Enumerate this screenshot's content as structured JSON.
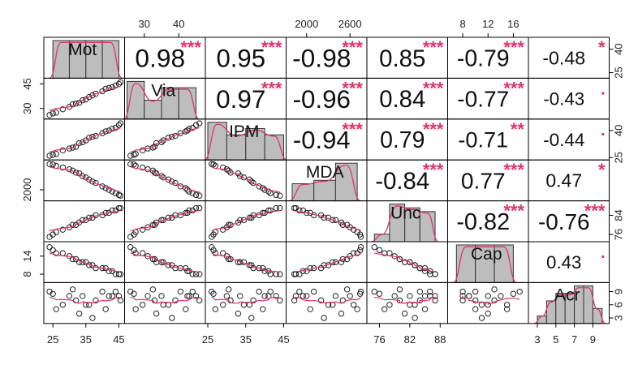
{
  "chart_data": {
    "type": "scatter-matrix",
    "variables": [
      "Mot",
      "Via",
      "IPM",
      "MDA",
      "Unc",
      "Cap",
      "Acr"
    ],
    "ranges": [
      [
        23,
        46
      ],
      [
        25,
        47
      ],
      [
        25,
        45
      ],
      [
        1750,
        2800
      ],
      [
        74,
        89
      ],
      [
        6,
        18
      ],
      [
        2.3,
        10.5
      ]
    ],
    "correlations": [
      {
        "row": 0,
        "col": 1,
        "text": "0.98",
        "stars": "***"
      },
      {
        "row": 0,
        "col": 2,
        "text": "0.95",
        "stars": "***"
      },
      {
        "row": 0,
        "col": 3,
        "text": "-0.98",
        "stars": "***"
      },
      {
        "row": 0,
        "col": 4,
        "text": "0.85",
        "stars": "***"
      },
      {
        "row": 0,
        "col": 5,
        "text": "-0.79",
        "stars": "***"
      },
      {
        "row": 0,
        "col": 6,
        "text": "-0.48",
        "stars": "*"
      },
      {
        "row": 1,
        "col": 2,
        "text": "0.97",
        "stars": "***"
      },
      {
        "row": 1,
        "col": 3,
        "text": "-0.96",
        "stars": "***"
      },
      {
        "row": 1,
        "col": 4,
        "text": "0.84",
        "stars": "***"
      },
      {
        "row": 1,
        "col": 5,
        "text": "-0.77",
        "stars": "***"
      },
      {
        "row": 1,
        "col": 6,
        "text": "-0.43",
        "stars": "."
      },
      {
        "row": 2,
        "col": 3,
        "text": "-0.94",
        "stars": "***"
      },
      {
        "row": 2,
        "col": 4,
        "text": "0.79",
        "stars": "***"
      },
      {
        "row": 2,
        "col": 5,
        "text": "-0.71",
        "stars": "**"
      },
      {
        "row": 2,
        "col": 6,
        "text": "-0.44",
        "stars": "."
      },
      {
        "row": 3,
        "col": 4,
        "text": "-0.84",
        "stars": "***"
      },
      {
        "row": 3,
        "col": 5,
        "text": "0.77",
        "stars": "***"
      },
      {
        "row": 3,
        "col": 6,
        "text": "0.47",
        "stars": "*"
      },
      {
        "row": 4,
        "col": 5,
        "text": "-0.82",
        "stars": "***"
      },
      {
        "row": 4,
        "col": 6,
        "text": "-0.76",
        "stars": "***"
      },
      {
        "row": 5,
        "col": 6,
        "text": "0.43",
        "stars": "."
      }
    ],
    "histograms": [
      {
        "var": "Mot",
        "bins": [
          25,
          30,
          35,
          40,
          45
        ],
        "counts": [
          5,
          5,
          5,
          5
        ]
      },
      {
        "var": "Via",
        "bins": [
          25,
          30,
          35,
          40,
          45
        ],
        "counts": [
          6,
          3,
          5,
          5
        ]
      },
      {
        "var": "IPM",
        "bins": [
          25,
          30,
          35,
          40,
          45
        ],
        "counts": [
          6,
          4,
          5,
          4
        ]
      },
      {
        "var": "MDA",
        "bins": [
          1800,
          2100,
          2400,
          2700
        ],
        "counts": [
          5,
          6,
          11
        ]
      },
      {
        "var": "Unc",
        "bins": [
          75,
          78,
          81,
          84,
          87
        ],
        "counts": [
          2,
          10,
          9,
          8
        ]
      },
      {
        "var": "Cap",
        "bins": [
          7,
          10,
          13,
          16
        ],
        "counts": [
          7,
          7,
          7
        ]
      },
      {
        "var": "Acr",
        "bins": [
          3,
          4,
          5,
          6,
          7,
          8,
          9,
          10
        ],
        "counts": [
          1,
          3,
          4,
          4,
          5,
          5,
          2
        ]
      }
    ],
    "points": {
      "Mot": [
        24,
        25,
        26,
        28,
        30,
        31,
        32,
        33,
        34,
        35,
        36,
        37,
        38,
        40,
        41,
        42,
        43,
        44,
        45,
        45.5
      ],
      "Via": [
        26,
        27,
        27.5,
        29.5,
        31,
        32.5,
        33,
        33.5,
        35,
        35.5,
        37,
        38,
        39,
        40.5,
        42,
        42.5,
        43,
        44,
        45,
        46
      ],
      "IPM": [
        26,
        26.5,
        27,
        29,
        30,
        30.5,
        31,
        33,
        33.5,
        34.5,
        36,
        36.5,
        37,
        38.5,
        39.5,
        40,
        41,
        41.5,
        43,
        44
      ],
      "MDA": [
        2750,
        2740,
        2700,
        2650,
        2600,
        2560,
        2500,
        2480,
        2400,
        2360,
        2300,
        2240,
        2200,
        2100,
        2050,
        2000,
        1950,
        1900,
        1850,
        1830
      ],
      "Unc": [
        75,
        76,
        77,
        78,
        79,
        80,
        80,
        81,
        82,
        82,
        83,
        83,
        84,
        84,
        85,
        85,
        86,
        86,
        87,
        87
      ],
      "Cap": [
        17,
        16,
        15,
        15,
        14,
        13,
        13,
        12,
        12,
        12,
        11,
        11,
        10,
        10,
        10,
        9,
        9,
        8,
        8,
        8
      ],
      "Acr": [
        9,
        8.5,
        5,
        6,
        8,
        9.5,
        7,
        4,
        8,
        6,
        6,
        3,
        7,
        9,
        5,
        8,
        8,
        9,
        8,
        7
      ]
    },
    "x_tick_labels": {
      "bottom": [
        {
          "col": 0,
          "labels": [
            "25",
            "35",
            "45"
          ],
          "values": [
            25,
            35,
            45
          ]
        },
        {
          "col": 2,
          "labels": [
            "25",
            "35",
            "45"
          ],
          "values": [
            25,
            35,
            45
          ]
        },
        {
          "col": 4,
          "labels": [
            "76",
            "82",
            "88"
          ],
          "values": [
            76,
            82,
            88
          ]
        },
        {
          "col": 6,
          "labels": [
            "3",
            "5",
            "7",
            "9"
          ],
          "values": [
            3,
            5,
            7,
            9
          ]
        }
      ],
      "top": [
        {
          "col": 1,
          "labels": [
            "30",
            "40"
          ],
          "values": [
            30,
            40
          ]
        },
        {
          "col": 3,
          "labels": [
            "2000",
            "2600"
          ],
          "values": [
            2000,
            2600
          ]
        },
        {
          "col": 5,
          "labels": [
            "8",
            "12",
            "16"
          ],
          "values": [
            8,
            12,
            16
          ]
        }
      ]
    },
    "y_tick_labels": {
      "left": [
        {
          "row": 1,
          "labels": [
            "30",
            "45"
          ],
          "values": [
            30,
            45
          ]
        },
        {
          "row": 3,
          "labels": [
            "2000"
          ],
          "values": [
            2000
          ]
        },
        {
          "row": 5,
          "labels": [
            "8",
            "14"
          ],
          "values": [
            8,
            14
          ]
        }
      ],
      "right": [
        {
          "row": 0,
          "labels": [
            "25",
            "40"
          ],
          "values": [
            25,
            40
          ]
        },
        {
          "row": 2,
          "labels": [
            "25",
            "40"
          ],
          "values": [
            25,
            40
          ]
        },
        {
          "row": 4,
          "labels": [
            "76",
            "84"
          ],
          "values": [
            76,
            84
          ]
        },
        {
          "row": 6,
          "labels": [
            "3",
            "6",
            "9"
          ],
          "values": [
            3,
            6,
            9
          ]
        }
      ]
    },
    "colors": {
      "smooth_line": "#e0336b",
      "stars": "#e0336b",
      "histogram_fill": "#bdbdbd",
      "points": "#222222"
    }
  }
}
